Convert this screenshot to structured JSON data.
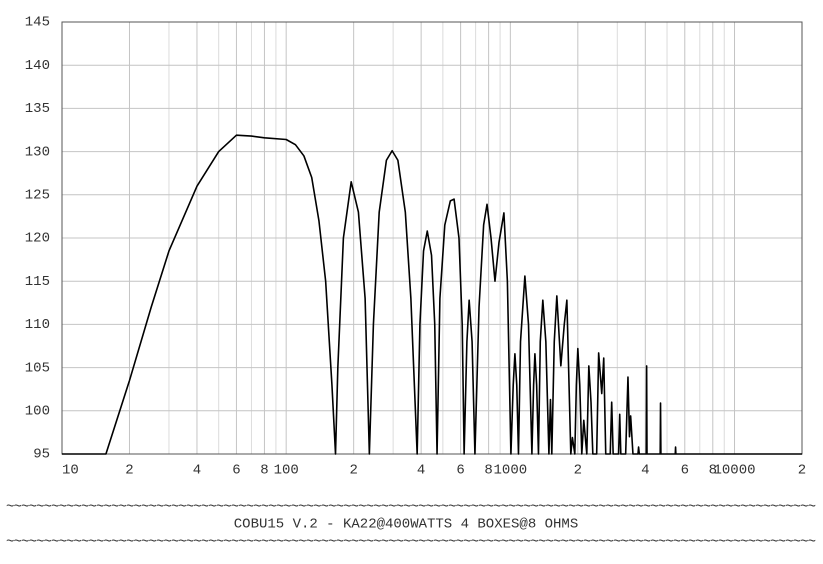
{
  "chart_data": {
    "type": "line",
    "log_x": true,
    "grid": true,
    "color": "#000000",
    "caption": "COBU15 V.2 - KA22@400WATTS 4 BOXES@8 OHMS",
    "rule": "~~~~~~~~~~~~~~~~~~~~~~~~~~~~~~~~~~~~~~~~~~~~~~~~~~~~~~~~~~~~~~~~~~~~~~~~~~~~~~~~~~~~~~~~~~~~~~~~~~~~~~~~~~~~",
    "xlim": [
      10,
      20000
    ],
    "ylim": [
      95,
      145
    ],
    "xticks": [
      10,
      {
        "value": 20,
        "label": "2"
      },
      {
        "value": 40,
        "label": "4"
      },
      {
        "value": 60,
        "label": "6"
      },
      {
        "value": 80,
        "label": "8"
      },
      100,
      {
        "value": 200,
        "label": "2"
      },
      {
        "value": 400,
        "label": "4"
      },
      {
        "value": 600,
        "label": "6"
      },
      {
        "value": 800,
        "label": "8"
      },
      1000,
      {
        "value": 2000,
        "label": "2"
      },
      {
        "value": 4000,
        "label": "4"
      },
      {
        "value": 6000,
        "label": "6"
      },
      {
        "value": 8000,
        "label": "8"
      },
      10000,
      {
        "value": 20000,
        "label": "2"
      }
    ],
    "xminorticks": [
      30,
      50,
      70,
      90,
      300,
      500,
      700,
      900,
      3000,
      5000,
      7000,
      9000
    ],
    "yticks": [
      95,
      100,
      105,
      110,
      115,
      120,
      125,
      130,
      135,
      140,
      145
    ],
    "x": [
      10,
      15.7,
      20,
      25,
      30,
      40,
      50,
      60,
      70,
      80,
      100,
      110,
      120,
      130,
      140,
      150,
      160,
      166,
      170,
      180,
      195,
      210,
      225,
      235,
      245,
      260,
      280,
      297,
      315,
      340,
      360,
      384,
      395,
      410,
      426,
      445,
      460,
      471,
      485,
      510,
      540,
      561,
      590,
      610,
      622,
      640,
      655,
      675,
      695,
      725,
      760,
      787,
      820,
      854,
      890,
      936,
      970,
      1006,
      1030,
      1048,
      1068,
      1087,
      1110,
      1161,
      1205,
      1248,
      1270,
      1287,
      1310,
      1335,
      1360,
      1396,
      1440,
      1486,
      1510,
      1531,
      1570,
      1612,
      1680,
      1740,
      1787,
      1861,
      1892,
      1939,
      1970,
      2000,
      2040,
      2083,
      2126,
      2193,
      2239,
      2290,
      2333,
      2427,
      2477,
      2557,
      2610,
      2664,
      2790,
      2832,
      2875,
      3040,
      3075,
      3110,
      3269,
      3347,
      3400,
      3441,
      3523,
      3710,
      3733,
      3760,
      4040,
      4055,
      4070,
      4660,
      4677,
      4695,
      5440,
      5458,
      5475,
      20000
    ],
    "values": [
      95,
      95,
      103.5,
      112,
      118.5,
      126,
      130,
      131.9,
      131.8,
      131.6,
      131.4,
      130.8,
      129.5,
      127,
      122,
      115,
      103,
      95,
      105,
      120,
      126.5,
      123,
      113,
      95,
      110,
      123,
      129,
      130.1,
      129,
      123,
      113,
      95,
      110,
      118.5,
      120.8,
      118,
      110,
      95,
      113,
      121.5,
      124.3,
      124.5,
      120,
      110,
      95,
      108,
      112.8,
      108,
      95,
      112,
      121.5,
      123.9,
      120,
      115,
      119.5,
      122.9,
      115,
      95,
      103,
      106.6,
      103,
      95,
      108,
      115.6,
      110,
      95,
      103,
      106.6,
      103,
      95,
      108,
      112.8,
      108,
      95,
      101.3,
      95,
      108,
      113.3,
      105.2,
      110,
      112.8,
      95,
      96.9,
      95,
      103,
      107.2,
      103,
      95,
      98.9,
      95,
      105.2,
      101,
      95,
      95,
      106.7,
      102,
      106.1,
      95,
      95,
      101,
      95,
      95,
      99.6,
      95,
      95,
      103.9,
      97,
      99.4,
      95,
      95,
      95.8,
      95,
      95,
      105.2,
      95,
      95,
      100.9,
      95,
      95,
      95.8,
      95,
      95
    ]
  }
}
